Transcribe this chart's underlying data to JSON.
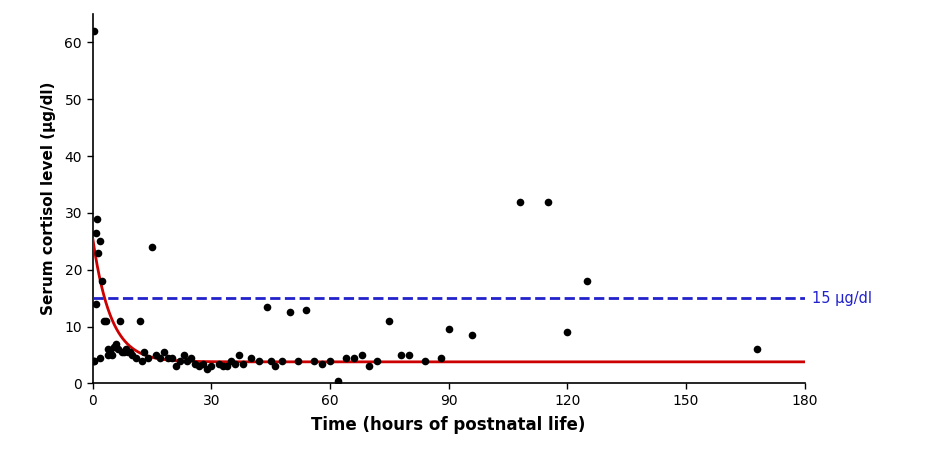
{
  "scatter_x": [
    0.3,
    0.5,
    0.5,
    0.8,
    1.0,
    1.2,
    1.5,
    2.0,
    2.0,
    2.5,
    3.0,
    3.5,
    4.0,
    4.0,
    4.5,
    5.0,
    5.5,
    6.0,
    6.5,
    7.0,
    7.5,
    8.0,
    8.5,
    9.0,
    9.5,
    10.0,
    11.0,
    12.0,
    12.5,
    13.0,
    14.0,
    15.0,
    16.0,
    17.0,
    18.0,
    19.0,
    20.0,
    21.0,
    22.0,
    23.0,
    24.0,
    25.0,
    26.0,
    27.0,
    28.0,
    29.0,
    30.0,
    32.0,
    33.0,
    34.0,
    35.0,
    36.0,
    37.0,
    38.0,
    40.0,
    42.0,
    44.0,
    45.0,
    46.0,
    48.0,
    50.0,
    52.0,
    54.0,
    56.0,
    58.0,
    60.0,
    62.0,
    64.0,
    66.0,
    68.0,
    70.0,
    72.0,
    75.0,
    78.0,
    80.0,
    84.0,
    88.0,
    90.0,
    96.0,
    108.0,
    115.0,
    120.0,
    125.0,
    168.0
  ],
  "scatter_y": [
    4.0,
    62.0,
    4.0,
    26.5,
    14.0,
    29.0,
    23.0,
    25.0,
    4.5,
    18.0,
    11.0,
    11.0,
    6.0,
    5.0,
    5.5,
    5.0,
    6.5,
    7.0,
    6.0,
    11.0,
    5.5,
    5.5,
    6.0,
    5.5,
    5.5,
    5.0,
    4.5,
    11.0,
    4.0,
    5.5,
    4.5,
    24.0,
    5.0,
    4.5,
    5.5,
    4.5,
    4.5,
    3.0,
    4.0,
    5.0,
    4.0,
    4.5,
    3.5,
    3.0,
    3.5,
    2.5,
    3.0,
    3.5,
    3.0,
    3.0,
    4.0,
    3.5,
    5.0,
    3.5,
    4.5,
    4.0,
    13.5,
    4.0,
    3.0,
    4.0,
    12.5,
    4.0,
    13.0,
    4.0,
    3.5,
    4.0,
    0.5,
    4.5,
    4.5,
    5.0,
    3.0,
    4.0,
    11.0,
    5.0,
    5.0,
    4.0,
    4.5,
    9.5,
    8.5,
    32.0,
    32.0,
    9.0,
    18.0,
    6.0
  ],
  "decay_A": 22.0,
  "decay_B": 3.8,
  "decay_k": 0.22,
  "dashed_y": 15,
  "dashed_label": "15 μg/dl",
  "xlabel": "Time (hours of postnatal life)",
  "ylabel": "Serum cortisol level (μg/dl)",
  "xlim": [
    0,
    180
  ],
  "ylim": [
    0,
    65
  ],
  "xticks": [
    0,
    30,
    60,
    90,
    120,
    150,
    180
  ],
  "yticks": [
    0,
    10,
    20,
    30,
    40,
    50,
    60
  ],
  "scatter_color": "#000000",
  "curve_color": "#cc0000",
  "dashed_color": "#2222cc",
  "background_color": "#ffffff",
  "marker_size": 5.5,
  "curve_lw": 2.0,
  "dashed_lw": 2.0,
  "xlabel_fontsize": 12,
  "ylabel_fontsize": 11,
  "tick_fontsize": 10
}
